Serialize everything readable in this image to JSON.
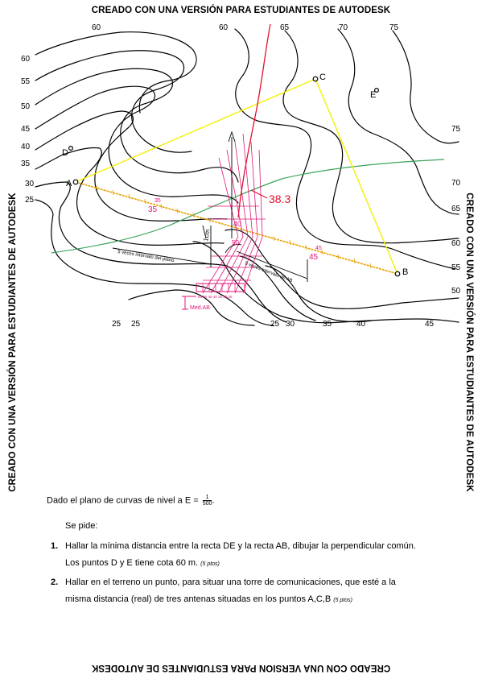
{
  "watermark": {
    "text": "CREADO CON UNA VERSIÓN PARA ESTUDIANTES DE AUTODESK",
    "text_plain": "CREADO CON UNA VERSION PARA ESTUDIANTES DE AUTODESK"
  },
  "map": {
    "contour_labels": [
      "60",
      "60",
      "65",
      "70",
      "75",
      "60",
      "55",
      "50",
      "45",
      "40",
      "35",
      "30",
      "25",
      "75",
      "70",
      "65",
      "60",
      "55",
      "50",
      "25",
      "25",
      "25",
      "30",
      "35",
      "40",
      "45"
    ],
    "points": {
      "a": "A",
      "b": "B",
      "c": "C",
      "d": "D",
      "e": "E"
    },
    "graduation_labels": {
      "left_35": "35",
      "left_35_small": "35",
      "right_45": "45",
      "right_45_small": "45",
      "center_40": "40",
      "center_50": "50"
    },
    "distance_value": "38.3",
    "one_cm_label": "1cm",
    "plan_interval_label": "5 veces intervalo del plano",
    "ab_interval_label": "5 veces intervalo de AB",
    "scale_ticks": "55 50 45 40 35 30 25",
    "med_ab_label": "Med.AB",
    "colors": {
      "contour": "#000000",
      "yellow_line": "#f4f000",
      "orange_line": "#e8a000",
      "green_line": "#3aa35a",
      "red_line": "#e3112a",
      "magenta": "#e0157a"
    }
  },
  "text": {
    "intro_prefix": "Dado el plano de curvas de nivel a E = ",
    "scale_num": "1",
    "scale_den": "500",
    "intro_suffix": ".",
    "se_pide": "Se pide:",
    "item1_num": "1.",
    "item1_line1": "Hallar la mínima distancia entre la recta DE y la recta AB, dibujar la perpendicular común.",
    "item1_line2": "Los puntos D y E tiene cota 60 m.",
    "item1_pts": "(5 ptos)",
    "item2_num": "2.",
    "item2_line1": "Hallar en el terreno un punto, para situar una torre de comunicaciones,  que  esté a la",
    "item2_line2": "misma distancia (real) de tres antenas situadas en los puntos A,C,B",
    "item2_pts": "(5 ptos)"
  }
}
